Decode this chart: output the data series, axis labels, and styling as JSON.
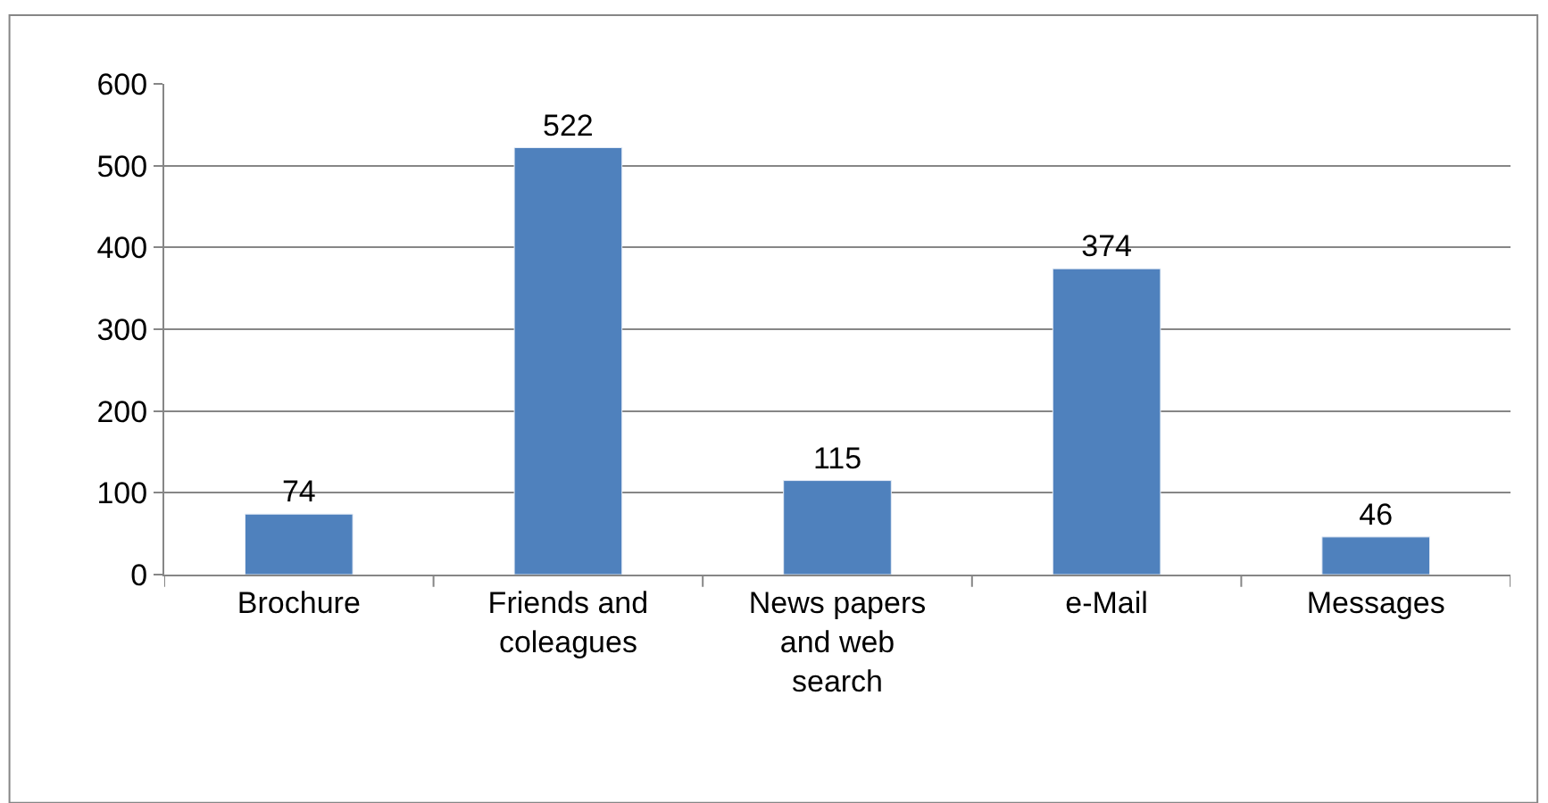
{
  "chart_data": {
    "type": "bar",
    "categories": [
      "Brochure",
      "Friends and coleagues",
      "News papers and web search",
      "e-Mail",
      "Messages"
    ],
    "values": [
      74,
      522,
      115,
      374,
      46
    ],
    "color": "#4f81bd",
    "ylim": [
      0,
      600
    ],
    "yticks": [
      0,
      100,
      200,
      300,
      400,
      500,
      600
    ],
    "grid": "y",
    "data_labels": true
  }
}
